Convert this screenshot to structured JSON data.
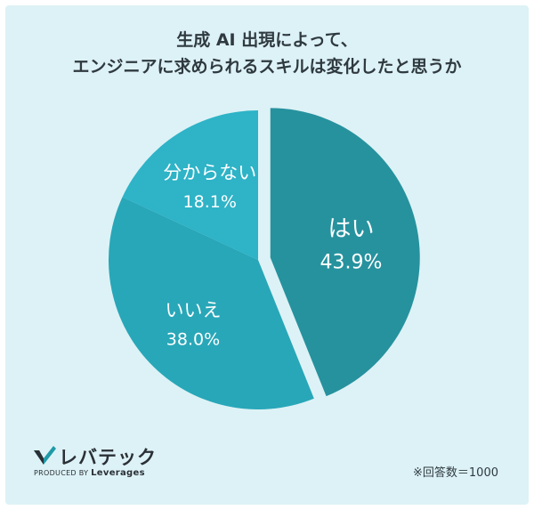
{
  "title_lines": [
    "生成 AI 出現によって、",
    "エンジニアに求められるスキルは変化したと思うか"
  ],
  "chart_data": {
    "type": "pie",
    "unit": "%",
    "slices": [
      {
        "label": "はい",
        "value": 43.9,
        "value_text": "43.9%",
        "color": "#26929e",
        "exploded": true
      },
      {
        "label": "いいえ",
        "value": 38.0,
        "value_text": "38.0%",
        "color": "#28a7b8",
        "exploded": false
      },
      {
        "label": "分からない",
        "value": 18.1,
        "value_text": "18.1%",
        "color": "#2eb3c7",
        "exploded": false
      }
    ]
  },
  "logo": {
    "name": "レバテック",
    "produced_by": "PRODUCED BY",
    "company": "Leverages"
  },
  "note": "※回答数＝1000"
}
